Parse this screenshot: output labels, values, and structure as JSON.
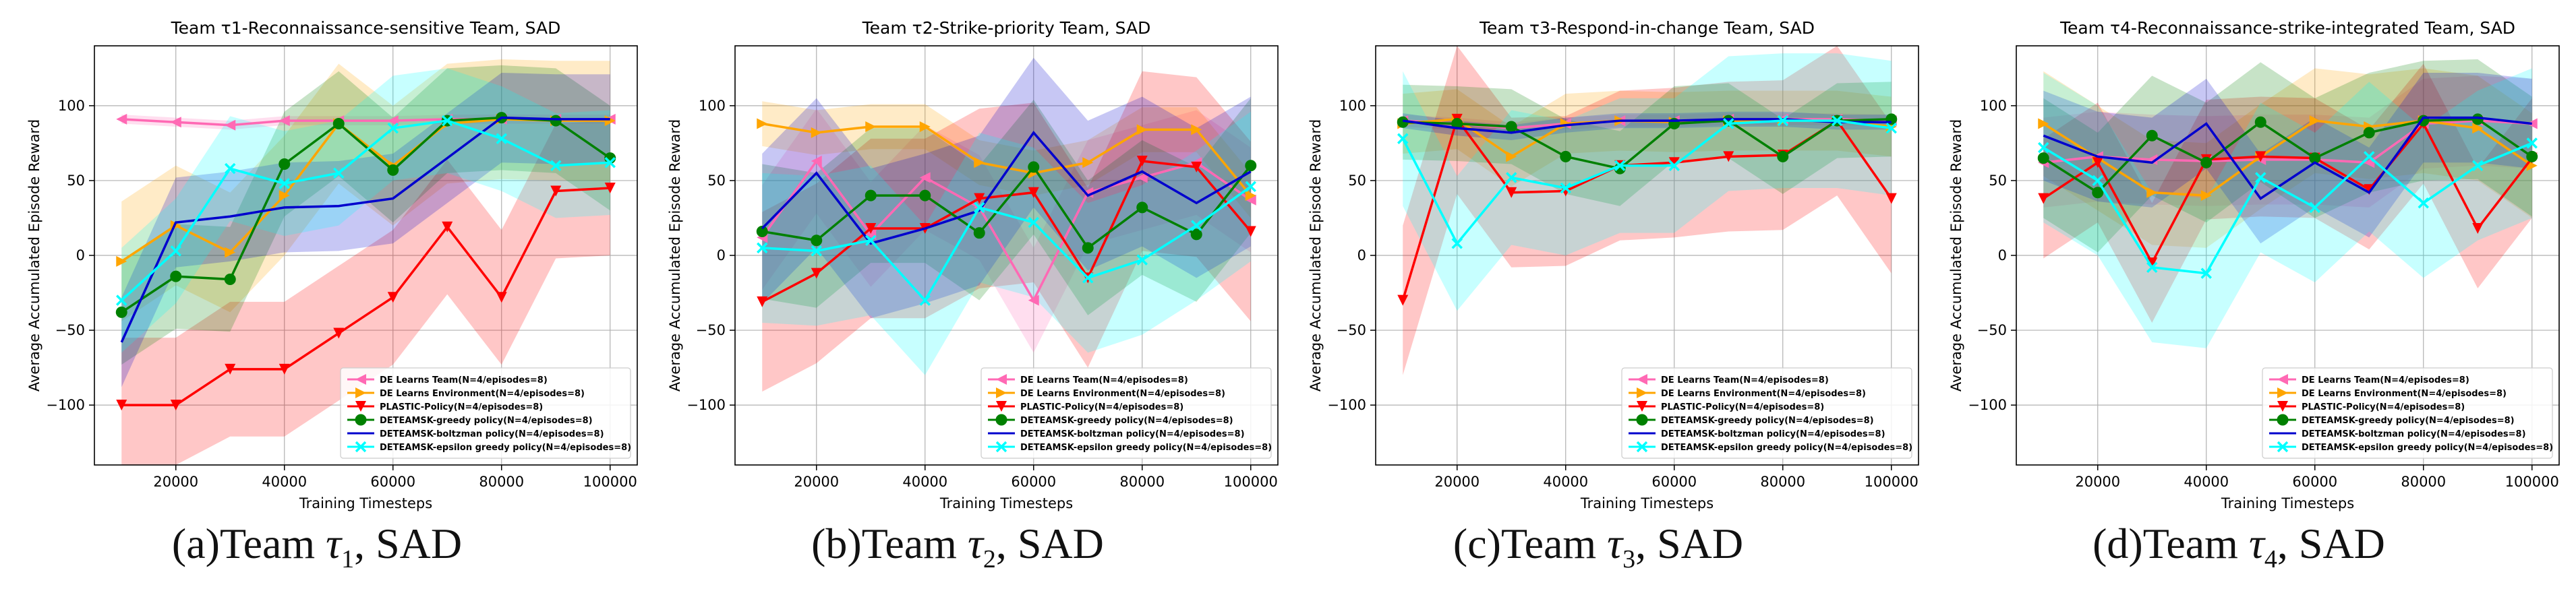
{
  "figure": {
    "captions": [
      {
        "prefix": "(a)Team ",
        "symbol": "τ",
        "subscript": "1",
        "suffix": ", SAD"
      },
      {
        "prefix": "(b)Team ",
        "symbol": "τ",
        "subscript": "2",
        "suffix": ", SAD"
      },
      {
        "prefix": "(c)Team ",
        "symbol": "τ",
        "subscript": "3",
        "suffix": ", SAD"
      },
      {
        "prefix": "(d)Team ",
        "symbol": "τ",
        "subscript": "4",
        "suffix": ", SAD"
      }
    ]
  },
  "chart_data": [
    {
      "type": "line",
      "title": "Team τ1-Reconnaissance-sensitive Team, SAD",
      "xlabel": "Training Timesteps",
      "ylabel": "Average Accumulated Episode Reward",
      "xlim": [
        5000,
        105000
      ],
      "ylim": [
        -140,
        140
      ],
      "xticks": [
        20000,
        40000,
        60000,
        80000,
        100000
      ],
      "yticks": [
        -100,
        -50,
        0,
        50,
        100
      ],
      "grid": true,
      "legend": "bottom-right",
      "x": [
        10000,
        20000,
        30000,
        40000,
        50000,
        60000,
        70000,
        80000,
        90000,
        100000
      ],
      "series": [
        {
          "name": "DE Learns Team(N=4/episodes=8)",
          "color": "#ff69b4",
          "marker": "<",
          "values": [
            91,
            89,
            87,
            90,
            90,
            90,
            91,
            91,
            91,
            91
          ],
          "band": 3
        },
        {
          "name": "DE Learns Environment(N=4/episodes=8)",
          "color": "#ffa500",
          "marker": ">",
          "values": [
            -4,
            20,
            2,
            40,
            88,
            60,
            88,
            91,
            90,
            90
          ],
          "band": 40
        },
        {
          "name": "PLASTIC-Policy(N=4/episodes=8)",
          "color": "#ff0000",
          "marker": "v",
          "values": [
            -100,
            -100,
            -76,
            -76,
            -52,
            -28,
            19,
            -28,
            43,
            45
          ],
          "band": 45
        },
        {
          "name": "DETEAMSK-greedy policy(N=4/episodes=8)",
          "color": "#008000",
          "marker": "o",
          "values": [
            -38,
            -14,
            -16,
            61,
            88,
            57,
            90,
            92,
            90,
            65
          ],
          "band": 35
        },
        {
          "name": "DETEAMSK-boltzman policy(N=4/episodes=8)",
          "color": "#0000cd",
          "marker": "",
          "values": [
            -58,
            22,
            26,
            32,
            33,
            38,
            65,
            92,
            91,
            91
          ],
          "band": 30
        },
        {
          "name": "DETEAMSK-epsilon greedy policy(N=4/episodes=8)",
          "color": "#00ffff",
          "marker": "x",
          "values": [
            -30,
            3,
            58,
            48,
            55,
            85,
            90,
            78,
            60,
            62
          ],
          "band": 35
        }
      ]
    },
    {
      "type": "line",
      "title": "Team τ2-Strike-priority Team, SAD",
      "xlabel": "Training Timesteps",
      "ylabel": "Average Accumulated Episode Reward",
      "xlim": [
        5000,
        105000
      ],
      "ylim": [
        -140,
        140
      ],
      "xticks": [
        20000,
        40000,
        60000,
        80000,
        100000
      ],
      "yticks": [
        -100,
        -50,
        0,
        50,
        100
      ],
      "grid": true,
      "legend": "bottom-right",
      "x": [
        10000,
        20000,
        30000,
        40000,
        50000,
        60000,
        70000,
        80000,
        90000,
        100000
      ],
      "series": [
        {
          "name": "DE Learns Team(N=4/episodes=8)",
          "color": "#ff69b4",
          "marker": "<",
          "values": [
            12,
            63,
            14,
            52,
            32,
            -30,
            42,
            52,
            62,
            37
          ],
          "band": 35
        },
        {
          "name": "DE Learns Environment(N=4/episodes=8)",
          "color": "#ffa500",
          "marker": ">",
          "values": [
            88,
            82,
            86,
            86,
            62,
            55,
            62,
            84,
            84,
            40
          ],
          "band": 15
        },
        {
          "name": "PLASTIC-Policy(N=4/episodes=8)",
          "color": "#ff0000",
          "marker": "v",
          "values": [
            -31,
            -12,
            18,
            18,
            38,
            42,
            -15,
            63,
            59,
            16
          ],
          "band": 60
        },
        {
          "name": "DETEAMSK-greedy policy(N=4/episodes=8)",
          "color": "#008000",
          "marker": "o",
          "values": [
            16,
            10,
            40,
            40,
            15,
            59,
            5,
            32,
            14,
            60
          ],
          "band": 45
        },
        {
          "name": "DETEAMSK-boltzman policy(N=4/episodes=8)",
          "color": "#0000cd",
          "marker": "",
          "values": [
            18,
            55,
            8,
            18,
            30,
            82,
            40,
            56,
            35,
            56
          ],
          "band": 50
        },
        {
          "name": "DETEAMSK-epsilon greedy policy(N=4/episodes=8)",
          "color": "#00ffff",
          "marker": "x",
          "values": [
            5,
            3,
            10,
            -30,
            32,
            22,
            -15,
            -3,
            20,
            46
          ],
          "band": 50
        }
      ]
    },
    {
      "type": "line",
      "title": "Team τ3-Respond-in-change Team, SAD",
      "xlabel": "Training Timesteps",
      "ylabel": "Average Accumulated Episode Reward",
      "xlim": [
        5000,
        105000
      ],
      "ylim": [
        -140,
        140
      ],
      "xticks": [
        20000,
        40000,
        60000,
        80000,
        100000
      ],
      "yticks": [
        -100,
        -50,
        0,
        50,
        100
      ],
      "grid": true,
      "legend": "bottom-right",
      "x": [
        10000,
        20000,
        30000,
        40000,
        50000,
        60000,
        70000,
        80000,
        90000,
        100000
      ],
      "series": [
        {
          "name": "DE Learns Team(N=4/episodes=8)",
          "color": "#ff69b4",
          "marker": "<",
          "values": [
            90,
            88,
            85,
            88,
            90,
            90,
            91,
            91,
            91,
            90
          ],
          "band": 4
        },
        {
          "name": "DE Learns Environment(N=4/episodes=8)",
          "color": "#ffa500",
          "marker": ">",
          "values": [
            88,
            91,
            66,
            88,
            90,
            89,
            90,
            90,
            90,
            86
          ],
          "band": 20
        },
        {
          "name": "PLASTIC-Policy(N=4/episodes=8)",
          "color": "#ff0000",
          "marker": "v",
          "values": [
            -30,
            91,
            42,
            43,
            60,
            62,
            66,
            67,
            90,
            38
          ],
          "band": 50
        },
        {
          "name": "DETEAMSK-greedy policy(N=4/episodes=8)",
          "color": "#008000",
          "marker": "o",
          "values": [
            89,
            88,
            86,
            66,
            58,
            88,
            90,
            66,
            90,
            91
          ],
          "band": 25
        },
        {
          "name": "DETEAMSK-boltzman policy(N=4/episodes=8)",
          "color": "#0000cd",
          "marker": "",
          "values": [
            90,
            85,
            82,
            87,
            90,
            90,
            91,
            91,
            89,
            89
          ],
          "band": 5
        },
        {
          "name": "DETEAMSK-epsilon greedy policy(N=4/episodes=8)",
          "color": "#00ffff",
          "marker": "x",
          "values": [
            78,
            8,
            52,
            45,
            60,
            60,
            88,
            90,
            90,
            85
          ],
          "band": 45
        }
      ]
    },
    {
      "type": "line",
      "title": "Team τ4-Reconnaissance-strike-integrated Team, SAD",
      "xlabel": "Training Timesteps",
      "ylabel": "Average Accumulated Episode Reward",
      "xlim": [
        5000,
        105000
      ],
      "ylim": [
        -140,
        140
      ],
      "xticks": [
        20000,
        40000,
        60000,
        80000,
        100000
      ],
      "yticks": [
        -100,
        -50,
        0,
        50,
        100
      ],
      "grid": true,
      "legend": "bottom-right",
      "x": [
        10000,
        20000,
        30000,
        40000,
        50000,
        60000,
        70000,
        80000,
        90000,
        100000
      ],
      "series": [
        {
          "name": "DE Learns Team(N=4/episodes=8)",
          "color": "#ff69b4",
          "marker": "<",
          "values": [
            62,
            66,
            64,
            63,
            64,
            64,
            62,
            88,
            90,
            88
          ],
          "band": 30
        },
        {
          "name": "DE Learns Environment(N=4/episodes=8)",
          "color": "#ffa500",
          "marker": ">",
          "values": [
            88,
            65,
            42,
            40,
            66,
            90,
            86,
            90,
            85,
            60
          ],
          "band": 35
        },
        {
          "name": "PLASTIC-Policy(N=4/episodes=8)",
          "color": "#ff0000",
          "marker": "v",
          "values": [
            38,
            62,
            -5,
            64,
            66,
            65,
            44,
            88,
            18,
            65
          ],
          "band": 40
        },
        {
          "name": "DETEAMSK-greedy policy(N=4/episodes=8)",
          "color": "#008000",
          "marker": "o",
          "values": [
            65,
            42,
            80,
            62,
            89,
            65,
            82,
            90,
            91,
            66
          ],
          "band": 40
        },
        {
          "name": "DETEAMSK-boltzman policy(N=4/episodes=8)",
          "color": "#0000cd",
          "marker": "",
          "values": [
            80,
            66,
            62,
            88,
            38,
            62,
            42,
            92,
            92,
            88
          ],
          "band": 30
        },
        {
          "name": "DETEAMSK-epsilon greedy policy(N=4/episodes=8)",
          "color": "#00ffff",
          "marker": "x",
          "values": [
            72,
            50,
            -8,
            -12,
            52,
            32,
            66,
            35,
            60,
            75
          ],
          "band": 50
        }
      ]
    }
  ]
}
